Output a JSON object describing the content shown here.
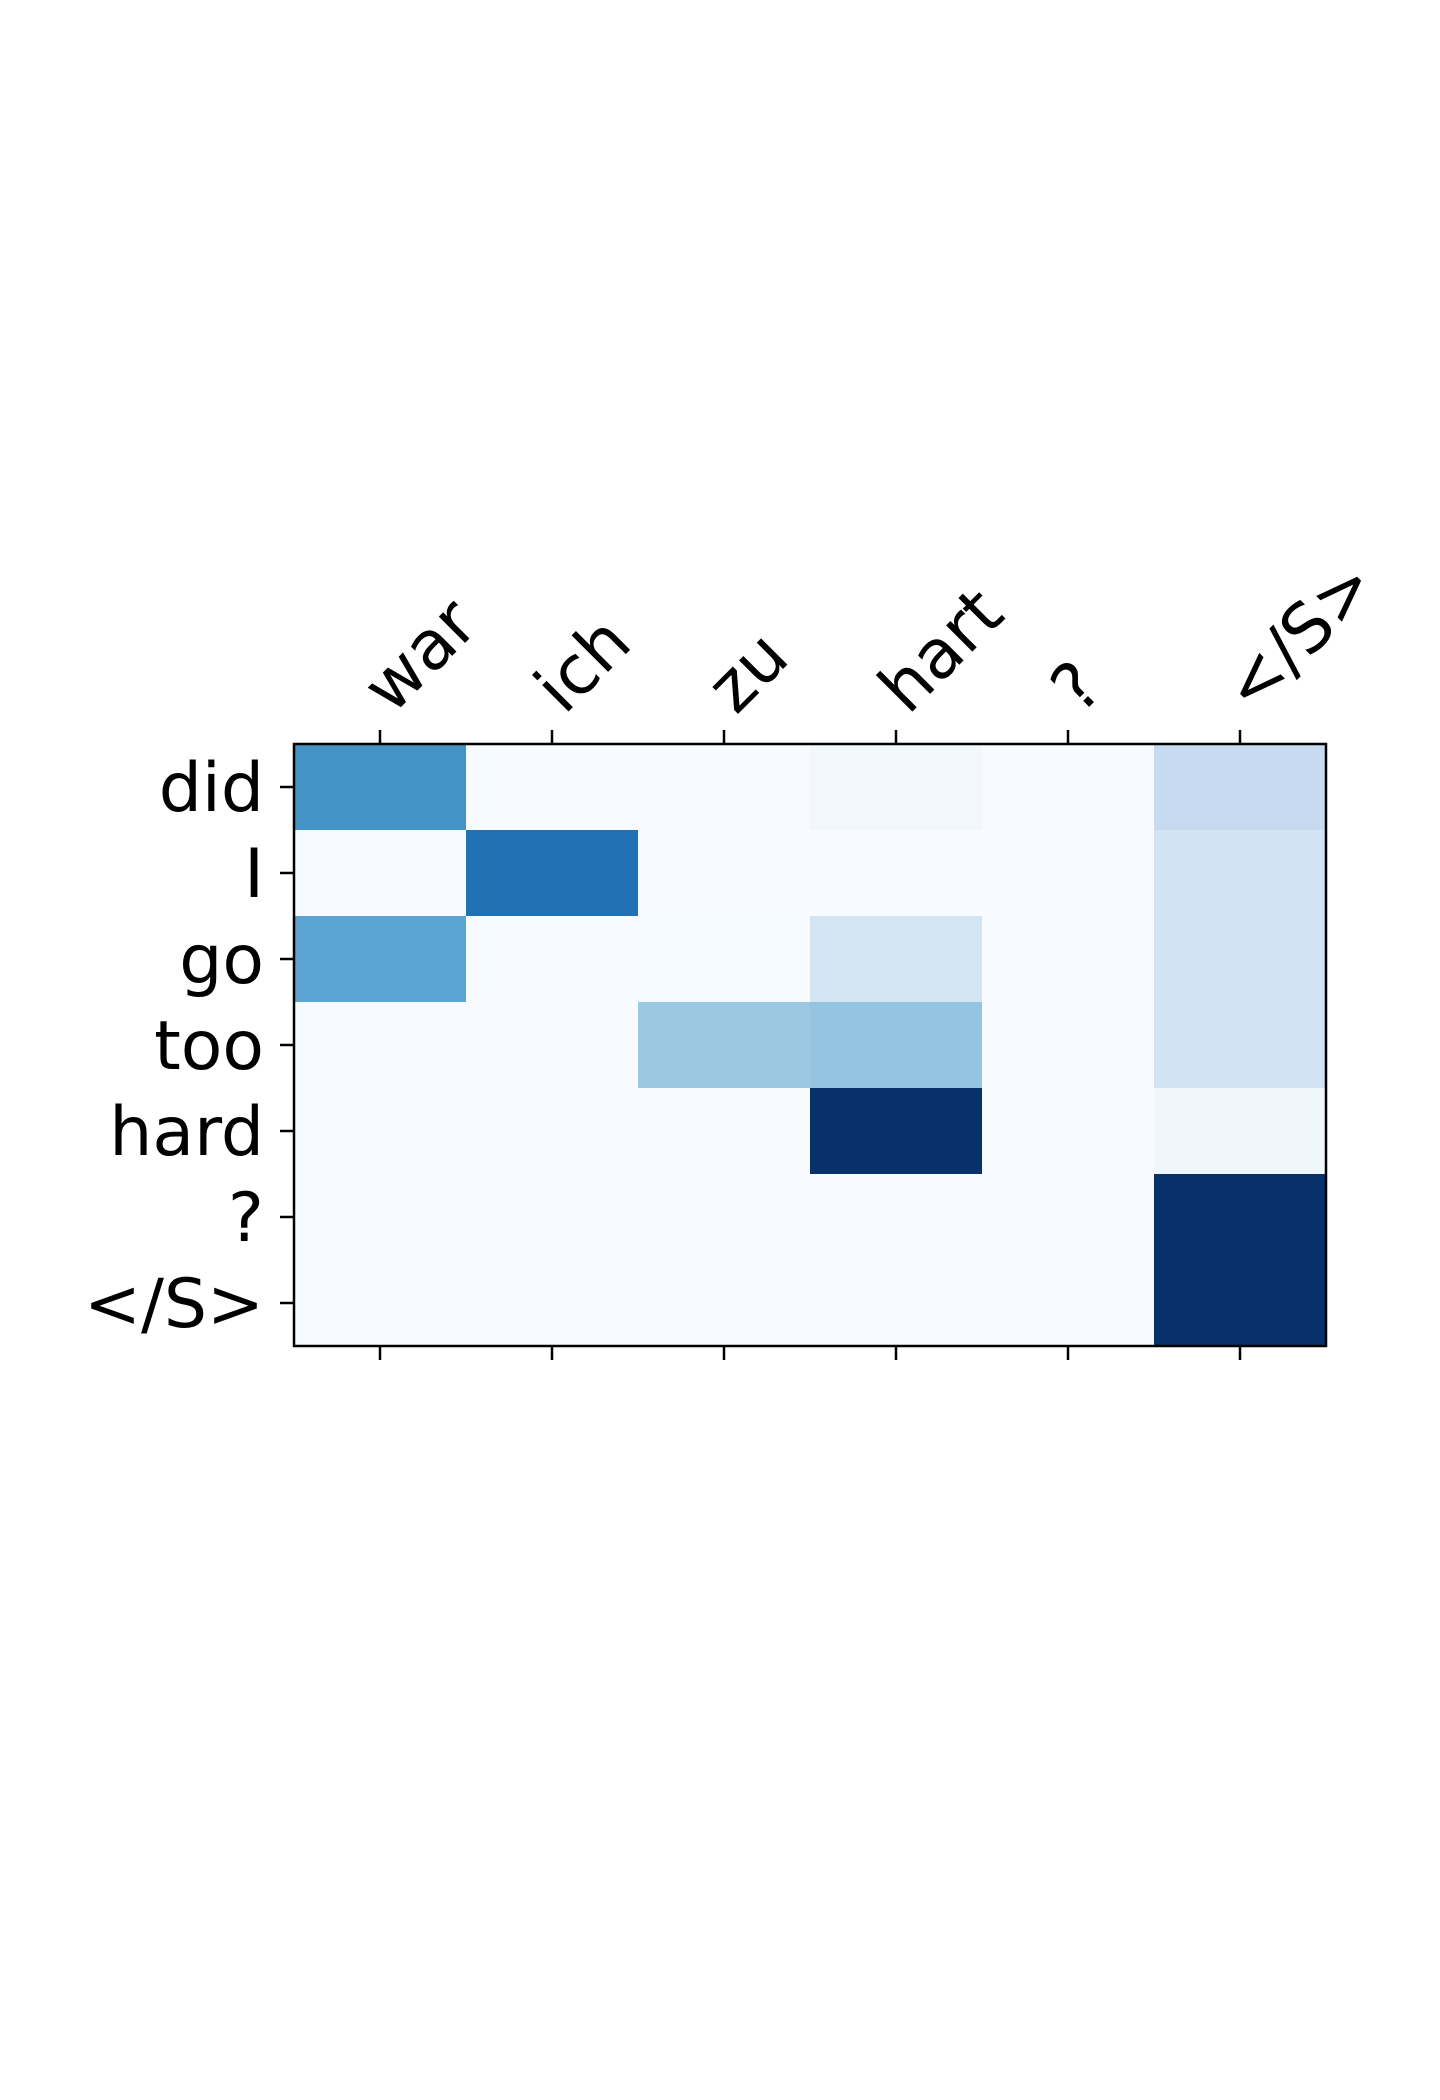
{
  "chart_data": {
    "type": "heatmap",
    "title": "",
    "xlabel": "",
    "ylabel": "",
    "x_categories": [
      "war",
      "ich",
      "zu",
      "hart",
      "?",
      "</S>"
    ],
    "y_categories": [
      "did",
      "I",
      "go",
      "too",
      "hard",
      "?",
      "</S>"
    ],
    "colormap": "Blues",
    "value_range": [
      0,
      1
    ],
    "grid": false,
    "legend": "none",
    "values": [
      [
        0.62,
        0.0,
        0.0,
        0.03,
        0.0,
        0.25
      ],
      [
        0.0,
        0.75,
        0.0,
        0.0,
        0.0,
        0.19
      ],
      [
        0.55,
        0.0,
        0.01,
        0.18,
        0.0,
        0.19
      ],
      [
        0.0,
        0.0,
        0.38,
        0.4,
        0.0,
        0.19
      ],
      [
        0.0,
        0.0,
        0.0,
        1.0,
        0.0,
        0.04
      ],
      [
        0.0,
        0.0,
        0.0,
        0.0,
        0.0,
        1.0
      ],
      [
        0.0,
        0.0,
        0.0,
        0.0,
        0.0,
        1.0
      ]
    ]
  }
}
